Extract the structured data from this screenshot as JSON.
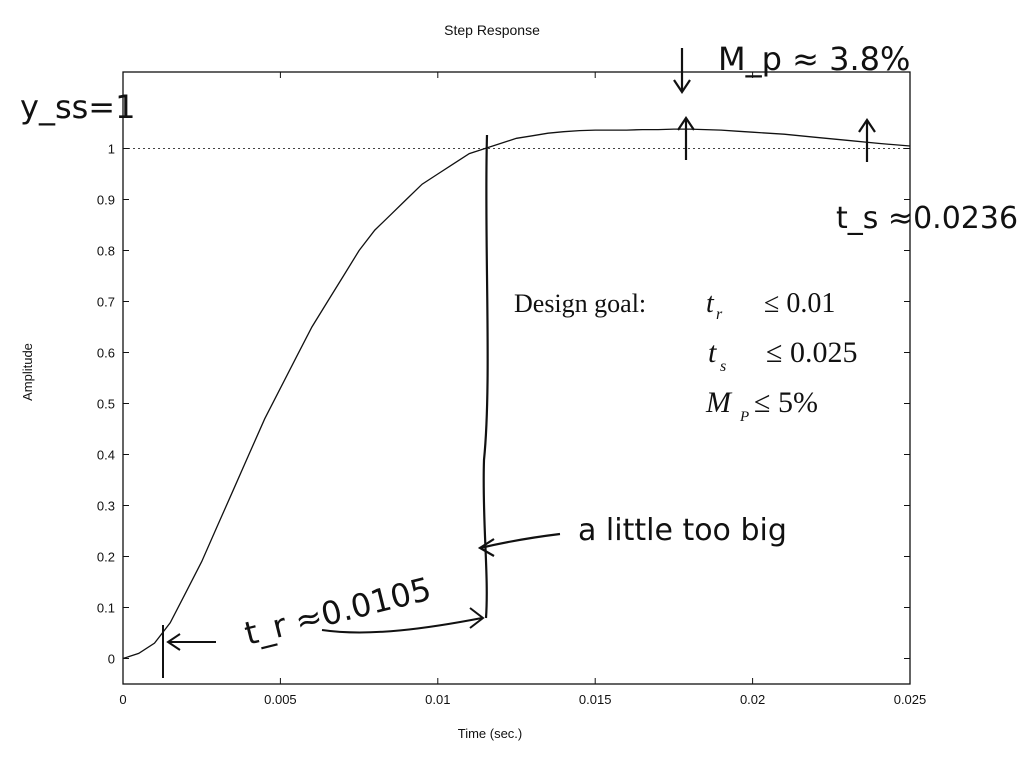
{
  "chart_data": {
    "type": "line",
    "title": "Step Response",
    "xlabel": "Time (sec.)",
    "ylabel": "Amplitude",
    "xlim": [
      0,
      0.025
    ],
    "ylim": [
      -0.05,
      1.15
    ],
    "xticks": [
      0,
      0.005,
      0.01,
      0.015,
      0.02,
      0.025
    ],
    "xtick_labels": [
      "0",
      "0.005",
      "0.01",
      "0.015",
      "0.02",
      "0.025"
    ],
    "yticks": [
      0,
      0.1,
      0.2,
      0.3,
      0.4,
      0.5,
      0.6,
      0.7,
      0.8,
      0.9,
      1
    ],
    "ytick_labels": [
      "0",
      "0.1",
      "0.2",
      "0.3",
      "0.4",
      "0.5",
      "0.6",
      "0.7",
      "0.8",
      "0.9",
      "1"
    ],
    "grid": false,
    "reference_line": {
      "y": 1,
      "style": "dotted"
    },
    "series": [
      {
        "x": [
          0,
          0.0005,
          0.001,
          0.0015,
          0.002,
          0.0025,
          0.003,
          0.0035,
          0.004,
          0.0045,
          0.005,
          0.0055,
          0.006,
          0.0065,
          0.007,
          0.0075,
          0.008,
          0.0085,
          0.009,
          0.0095,
          0.01,
          0.0105,
          0.011,
          0.0115,
          0.012,
          0.0125,
          0.013,
          0.0135,
          0.014,
          0.0145,
          0.015,
          0.0155,
          0.016,
          0.0165,
          0.017,
          0.0175,
          0.018,
          0.0185,
          0.019,
          0.0195,
          0.02,
          0.021,
          0.022,
          0.023,
          0.024,
          0.025
        ],
        "y": [
          0,
          0.01,
          0.03,
          0.07,
          0.13,
          0.19,
          0.26,
          0.33,
          0.4,
          0.47,
          0.53,
          0.59,
          0.65,
          0.7,
          0.75,
          0.8,
          0.84,
          0.87,
          0.9,
          0.93,
          0.95,
          0.97,
          0.99,
          1.0,
          1.01,
          1.02,
          1.025,
          1.03,
          1.033,
          1.035,
          1.036,
          1.036,
          1.036,
          1.037,
          1.037,
          1.038,
          1.038,
          1.037,
          1.036,
          1.034,
          1.032,
          1.028,
          1.022,
          1.016,
          1.01,
          1.005
        ]
      }
    ]
  },
  "annotations": {
    "yss": "y_ss=1",
    "mp": "M_p ≈ 3.8%",
    "ts": "t_s ≈0.0236",
    "tr": "t_r ≈0.0105",
    "note": "a little too big",
    "goal_label": "Design goal:",
    "goal_tr_sym": "t",
    "goal_tr_sub": "r",
    "goal_tr_val": "≤ 0.01",
    "goal_ts_sym": "t",
    "goal_ts_sub": "s",
    "goal_ts_val": "≤ 0.025",
    "goal_mp_sym": "M",
    "goal_mp_sub": "P",
    "goal_mp_val": "≤ 5%"
  }
}
